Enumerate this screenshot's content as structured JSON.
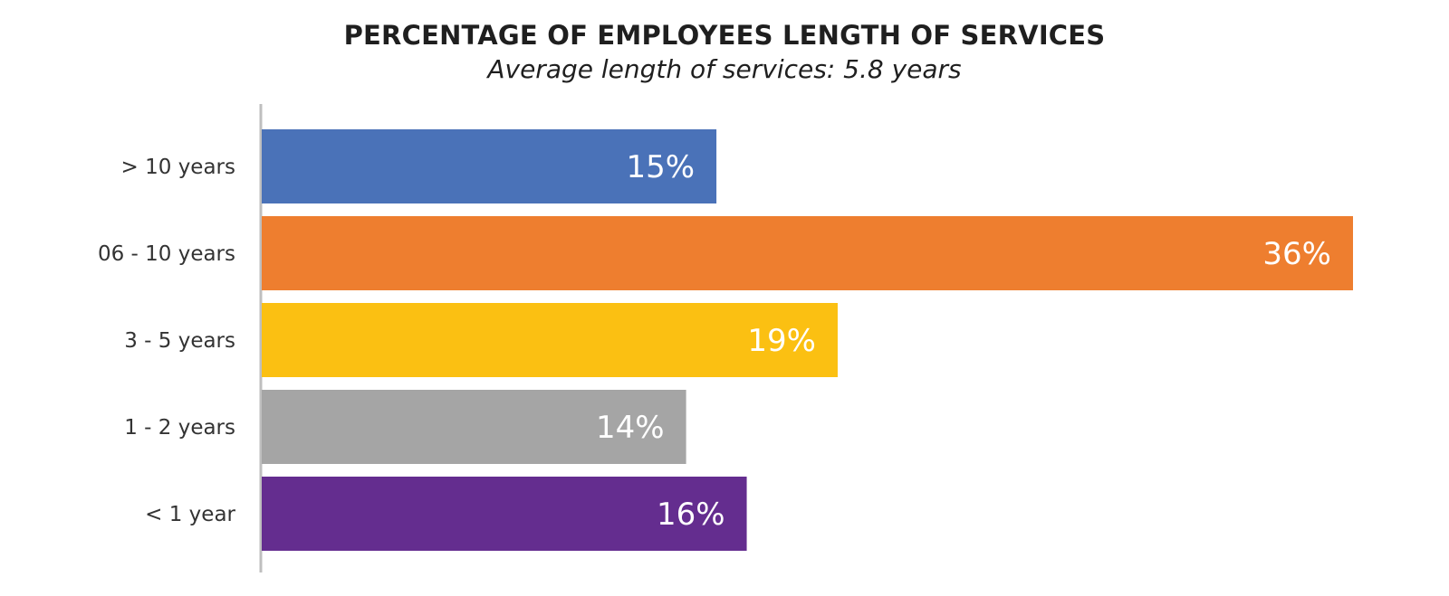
{
  "chart_data": {
    "type": "bar",
    "orientation": "horizontal",
    "title": "PERCENTAGE OF EMPLOYEES LENGTH OF SERVICES",
    "subtitle": "Average length of services: 5.8 years",
    "categories": [
      "> 10 years",
      "06 - 10 years",
      "3 - 5 years",
      "1 - 2  years",
      "< 1 year"
    ],
    "values": [
      15,
      36,
      19,
      14,
      16
    ],
    "value_labels": [
      "15%",
      "36%",
      "19%",
      "14%",
      "16%"
    ],
    "colors": [
      "#4a72b8",
      "#ee7e2f",
      "#fbc012",
      "#a5a5a5",
      "#642d8f"
    ],
    "xlim": [
      0,
      36
    ],
    "grid": false,
    "legend": "none"
  }
}
